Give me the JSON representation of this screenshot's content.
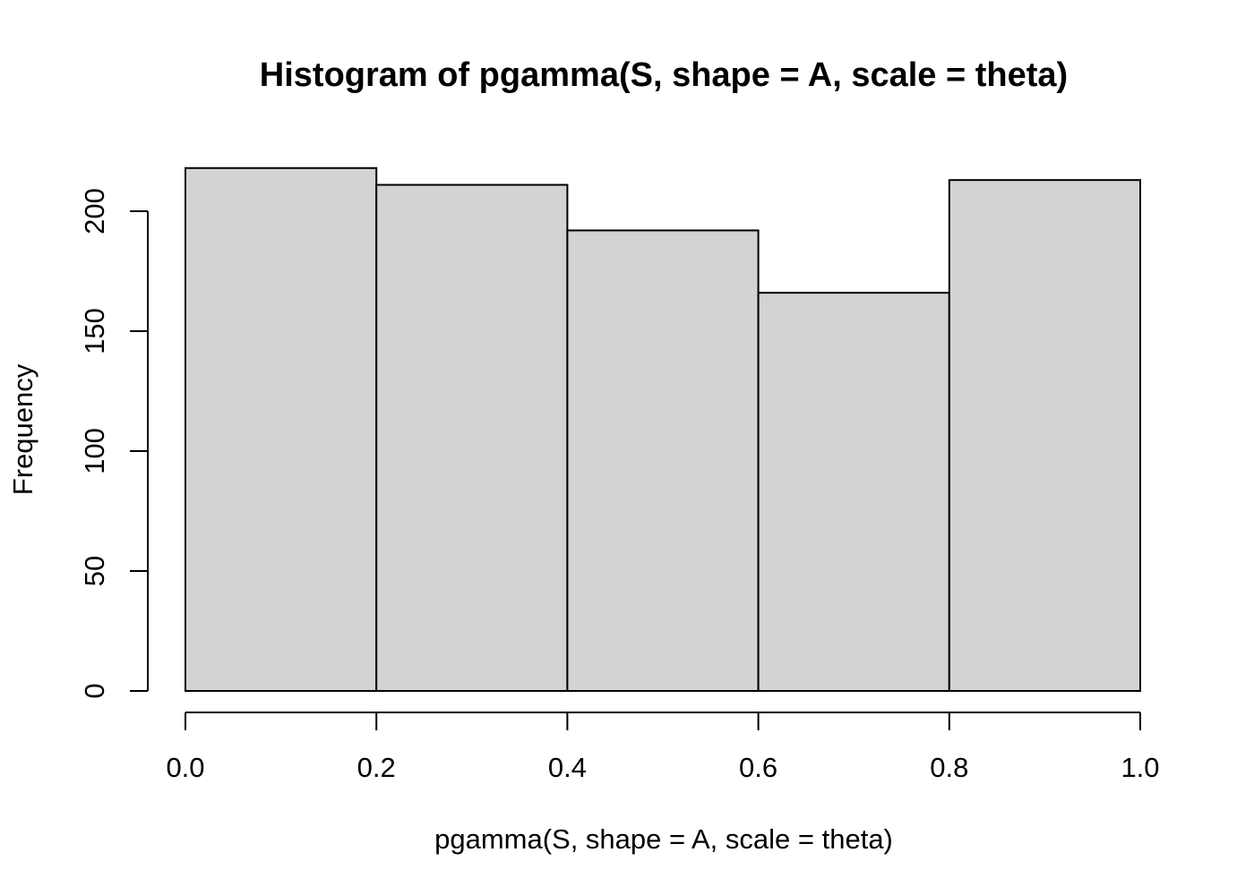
{
  "chart_data": {
    "type": "bar",
    "title": "Histogram of pgamma(S, shape = A, scale = theta)",
    "xlabel": "pgamma(S, shape = A, scale = theta)",
    "ylabel": "Frequency",
    "bins": [
      {
        "start": 0.0,
        "end": 0.2,
        "count": 218
      },
      {
        "start": 0.2,
        "end": 0.4,
        "count": 211
      },
      {
        "start": 0.4,
        "end": 0.6,
        "count": 192
      },
      {
        "start": 0.6,
        "end": 0.8,
        "count": 166
      },
      {
        "start": 0.8,
        "end": 1.0,
        "count": 213
      }
    ],
    "xlim": [
      0.0,
      1.0
    ],
    "ylim": [
      0,
      218
    ],
    "x_ticks": [
      "0.0",
      "0.2",
      "0.4",
      "0.6",
      "0.8",
      "1.0"
    ],
    "y_ticks": [
      "0",
      "50",
      "100",
      "150",
      "200"
    ],
    "grid": false,
    "legend": "none",
    "colors": {
      "bar_fill": "#d3d3d3",
      "bar_stroke": "#000000"
    }
  }
}
